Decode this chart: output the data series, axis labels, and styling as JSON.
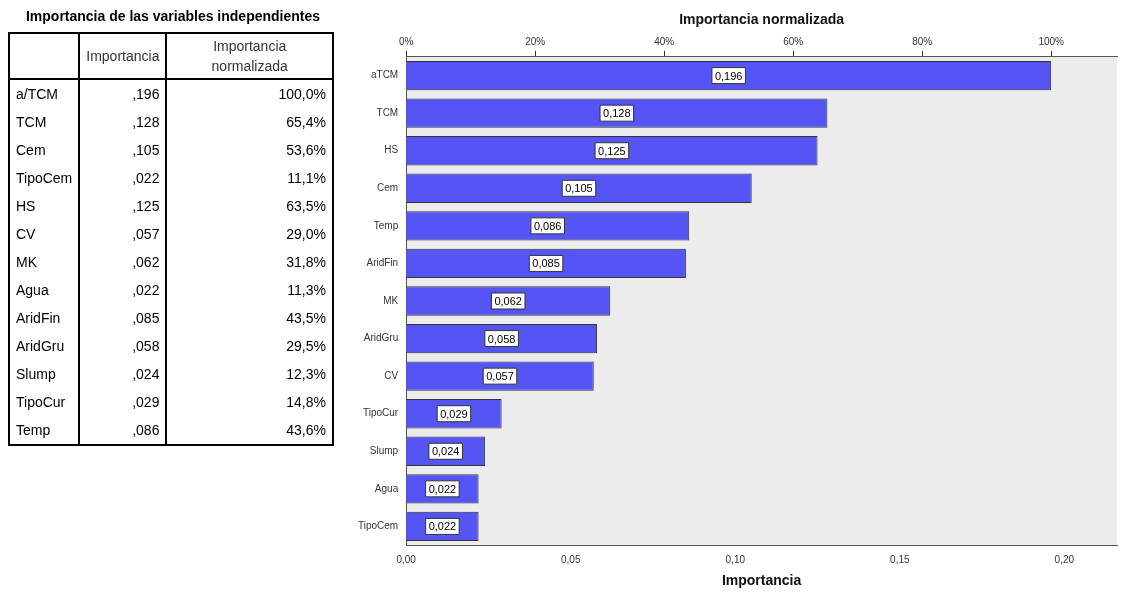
{
  "chart_data": [
    {
      "type": "other",
      "title": "Importancia de las variables independientes",
      "annotations": [
        "Importancia",
        "Importancia normalizada",
        "a/TCM",
        ",196",
        "100,0%",
        "TCM",
        ",128",
        "65,4%",
        "Cem",
        ",105",
        "53,6%",
        "TipoCem",
        ",022",
        "11,1%",
        "HS",
        ",125",
        "63,5%",
        "CV",
        ",057",
        "29,0%",
        "MK",
        ",062",
        "31,8%",
        "Agua",
        ",022",
        "11,3%",
        "AridFin",
        ",085",
        "43,5%",
        "AridGru",
        ",058",
        "29,5%",
        "Slump",
        ",024",
        "12,3%",
        "TipoCur",
        ",029",
        "14,8%",
        "Temp",
        ",086",
        "43,6%"
      ]
    },
    {
      "type": "bar",
      "orientation": "horizontal",
      "xlabel": "Importancia",
      "x2label": "Importancia normalizada",
      "categories": [
        "aTCM",
        "TCM",
        "HS",
        "Cem",
        "Temp",
        "AridFin",
        "MK",
        "AridGru",
        "CV",
        "TipoCur",
        "Slump",
        "Agua",
        "TipoCem"
      ],
      "values": [
        0.196,
        0.128,
        0.125,
        0.105,
        0.086,
        0.085,
        0.062,
        0.058,
        0.057,
        0.029,
        0.024,
        0.022,
        0.022
      ],
      "value_labels": [
        "0,196",
        "0,128",
        "0,125",
        "0,105",
        "0,086",
        "0,085",
        "0,062",
        "0,058",
        "0,057",
        "0,029",
        "0,024",
        "0,022",
        "0,022"
      ],
      "color": "#5555f5",
      "xlim": [
        0,
        0.216
      ],
      "xticks": [
        {
          "value": 0,
          "label": "0,00"
        },
        {
          "value": 0.05,
          "label": "0,05"
        },
        {
          "value": 0.1,
          "label": "0,10"
        },
        {
          "value": 0.15,
          "label": "0,15"
        },
        {
          "value": 0.2,
          "label": "0,20"
        }
      ],
      "x2lim": [
        0,
        110.2
      ],
      "x2ticks": [
        {
          "value": 0,
          "label": "0%"
        },
        {
          "value": 20,
          "label": "20%"
        },
        {
          "value": 40,
          "label": "40%"
        },
        {
          "value": 60,
          "label": "60%"
        },
        {
          "value": 80,
          "label": "80%"
        },
        {
          "value": 100,
          "label": "100%"
        }
      ],
      "grid": false,
      "legend": false
    }
  ]
}
